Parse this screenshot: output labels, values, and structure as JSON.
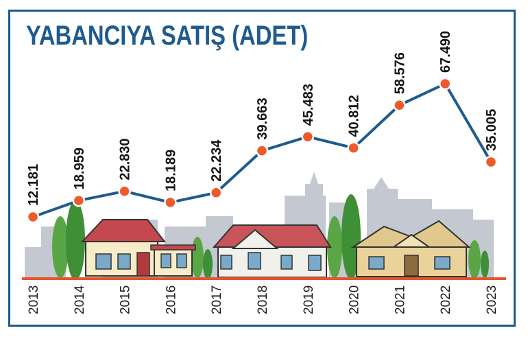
{
  "title": "YABANCIYA SATIŞ (ADET)",
  "colors": {
    "frame": "#1e5b8e",
    "title": "#1e5b8e",
    "line": "#1e5b8e",
    "marker_fill": "#ee5a2a",
    "marker_stroke": "#ffffff",
    "ground": "#e4572e",
    "skyline": "#bfc5cf",
    "trees": "#4a9a3a"
  },
  "chart_data": {
    "type": "line",
    "title": "YABANCIYA SATIŞ (ADET)",
    "x": [
      "2013",
      "2014",
      "2015",
      "2016",
      "2017",
      "2018",
      "2019",
      "2020",
      "2021",
      "2022",
      "2023"
    ],
    "values": [
      12181,
      18959,
      22830,
      18189,
      22234,
      39663,
      45483,
      40812,
      58576,
      67490,
      35005
    ],
    "value_labels": [
      "12.181",
      "18.959",
      "22.830",
      "18.189",
      "22.234",
      "39.663",
      "45.483",
      "40.812",
      "58.576",
      "67.490",
      "35.005"
    ],
    "xlabel": "",
    "ylabel": "",
    "ylim": [
      0,
      70000
    ],
    "grid": false,
    "legend": "none"
  }
}
